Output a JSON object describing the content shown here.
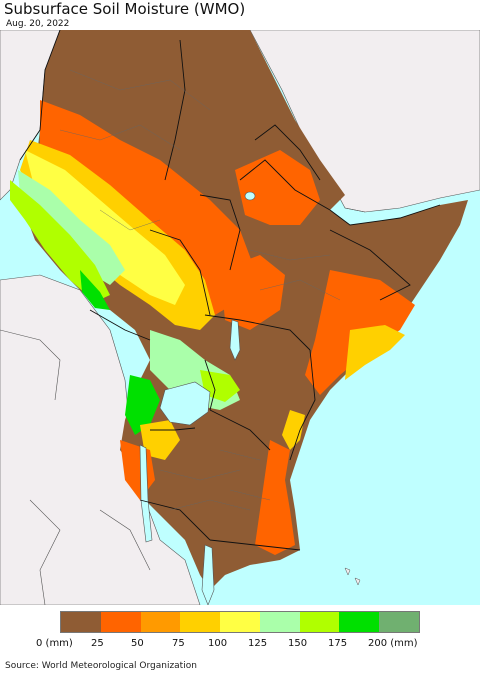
{
  "title": "Subsurface Soil Moisture (WMO)",
  "date": "Aug. 20, 2022",
  "legend": {
    "colors": [
      "#8f5c34",
      "#ff6400",
      "#ff9a00",
      "#ffd000",
      "#ffff44",
      "#aaffaa",
      "#b0ff00",
      "#00e000",
      "#70b070"
    ],
    "labels": [
      "0 (mm)",
      "25",
      "50",
      "75",
      "100",
      "125",
      "150",
      "175",
      "200 (mm)"
    ]
  },
  "source": "Source: World Meteorological Organization",
  "map_colors": {
    "sea": "#bfffff",
    "land_outside": "#f2eef0",
    "dry": "#8f5c34",
    "border": "#111111"
  }
}
